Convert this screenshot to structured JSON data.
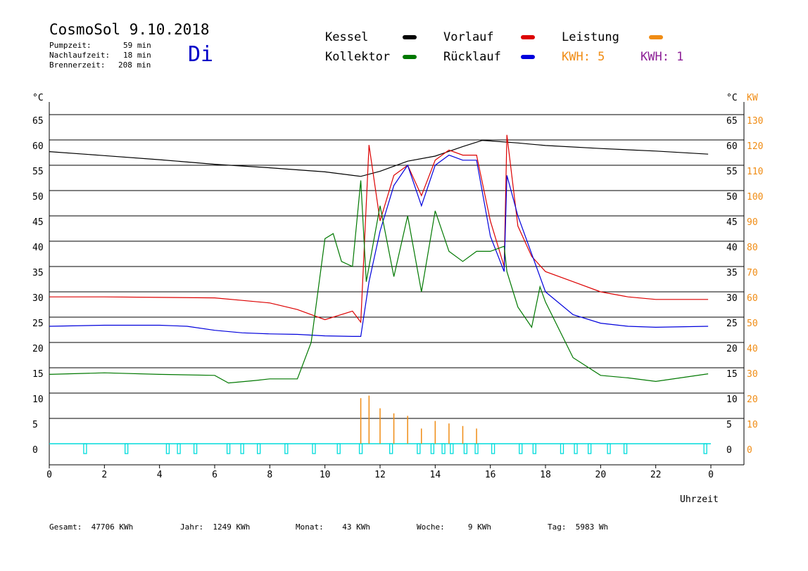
{
  "header": {
    "title": "CosmoSol 9.10.2018",
    "pump_label": "Pumpzeit:",
    "pump_value": "59 min",
    "nachlauf_label": "Nachlaufzeit:",
    "nachlauf_value": "18 min",
    "brenner_label": "Brennerzeit:",
    "brenner_value": "208 min",
    "weekday": "Di"
  },
  "legend": {
    "kessel": "Kessel",
    "kollektor": "Kollektor",
    "vorlauf": "Vorlauf",
    "ruecklauf": "Rücklauf",
    "leistung": "Leistung",
    "kwh1": "KWH: 5",
    "kwh2": "KWH: 1"
  },
  "colors": {
    "kessel": "#000000",
    "kollektor": "#007800",
    "vorlauf": "#dc0000",
    "ruecklauf": "#0000dc",
    "leistung": "#f08c14",
    "kwh2": "#8c1e96",
    "pump": "#00dcdc",
    "weekday": "#0000c8"
  },
  "footer": {
    "gesamt": "Gesamt:  47706 KWh",
    "jahr": "Jahr:  1249 KWh",
    "monat": "Monat:    43 KWh",
    "woche": "Woche:     9 KWh",
    "tag": "Tag:  5983 Wh"
  },
  "chart_data": {
    "type": "line",
    "xlabel": "Uhrzeit",
    "ylabel_left": "°C",
    "ylabel_right": "°C",
    "ylabel_right2": "KW",
    "xlim": [
      0,
      24
    ],
    "ylim": [
      0,
      65
    ],
    "x_ticks": [
      "0",
      "2",
      "4",
      "6",
      "8",
      "10",
      "12",
      "14",
      "16",
      "18",
      "20",
      "22",
      "0"
    ],
    "y_ticks": [
      0,
      5,
      10,
      15,
      20,
      25,
      30,
      35,
      40,
      45,
      50,
      55,
      60,
      65
    ],
    "kw_ticks": [
      0,
      10,
      20,
      30,
      40,
      50,
      60,
      70,
      80,
      90,
      100,
      110,
      120,
      130
    ],
    "series": [
      {
        "name": "Kessel",
        "color": "#000000",
        "x": [
          0,
          2,
          4,
          6,
          8,
          10,
          11.3,
          12,
          13,
          14,
          15,
          15.7,
          16,
          17,
          18,
          20,
          22,
          23.9
        ],
        "y": [
          57.7,
          56.9,
          56.1,
          55.2,
          54.5,
          53.7,
          52.8,
          53.8,
          55.8,
          56.8,
          58.7,
          59.9,
          59.8,
          59.4,
          58.9,
          58.3,
          57.8,
          57.2
        ]
      },
      {
        "name": "Vorlauf",
        "color": "#dc0000",
        "x": [
          0,
          2,
          4,
          6,
          7,
          8,
          9,
          10,
          11,
          11.3,
          11.6,
          12,
          12.5,
          13,
          13.5,
          14,
          14.5,
          15,
          15.5,
          16,
          16.5,
          16.6,
          17,
          17.5,
          18,
          19,
          20,
          21,
          22,
          23.9
        ],
        "y": [
          29,
          29,
          28.9,
          28.8,
          28.3,
          27.8,
          26.5,
          24.5,
          26.2,
          24,
          59,
          44,
          53,
          55,
          49,
          56,
          58,
          57,
          57,
          44,
          35,
          61,
          43,
          37,
          34,
          32,
          30,
          29,
          28.5,
          28.5
        ]
      },
      {
        "name": "Rücklauf",
        "color": "#0000dc",
        "x": [
          0,
          2,
          4,
          5,
          6,
          7,
          8,
          9,
          10,
          11,
          11.3,
          11.6,
          12,
          12.5,
          13,
          13.5,
          14,
          14.5,
          15,
          15.5,
          16,
          16.5,
          16.6,
          17,
          18,
          19,
          20,
          21,
          22,
          23.9
        ],
        "y": [
          23.2,
          23.4,
          23.4,
          23.2,
          22.4,
          21.9,
          21.7,
          21.6,
          21.3,
          21.2,
          21.2,
          32,
          42,
          51,
          55,
          47,
          55,
          57,
          56,
          56,
          41,
          34,
          53,
          45,
          30,
          25.5,
          23.8,
          23.2,
          23,
          23.2
        ]
      },
      {
        "name": "Kollektor",
        "color": "#007800",
        "x": [
          0,
          2,
          4,
          6,
          6.5,
          7.5,
          8,
          9,
          9.5,
          10,
          10.3,
          10.6,
          11,
          11.3,
          11.5,
          12,
          12.5,
          13,
          13.5,
          14,
          14.5,
          15,
          15.5,
          16,
          16.5,
          16.6,
          17,
          17.5,
          17.8,
          18,
          19,
          20,
          21,
          22,
          23.9
        ],
        "y": [
          13.7,
          14,
          13.7,
          13.5,
          12,
          12.5,
          12.8,
          12.8,
          20,
          40.5,
          41.5,
          36,
          35,
          52,
          32,
          47,
          33,
          45,
          30,
          46,
          38,
          36,
          38,
          38,
          39,
          34,
          27,
          23,
          31,
          28,
          17,
          13.5,
          13,
          12.3,
          13.8
        ]
      }
    ],
    "leistung_kw": {
      "name": "Leistung",
      "color": "#f08c14",
      "x": [
        11.3,
        11.6,
        12,
        12.5,
        13,
        13.5,
        14,
        14.5,
        15,
        15.5
      ],
      "y": [
        18,
        19,
        14,
        12,
        11,
        6,
        9,
        8,
        7,
        6
      ]
    },
    "pump_markers_hours": [
      1.3,
      2.8,
      4.3,
      4.7,
      5.3,
      6.5,
      7.0,
      7.6,
      8.6,
      9.6,
      10.5,
      11.3,
      12.4,
      13.4,
      13.9,
      14.3,
      14.6,
      15.1,
      15.5,
      16.1,
      17.1,
      17.6,
      18.6,
      19.1,
      19.6,
      20.3,
      20.9,
      23.8
    ]
  }
}
